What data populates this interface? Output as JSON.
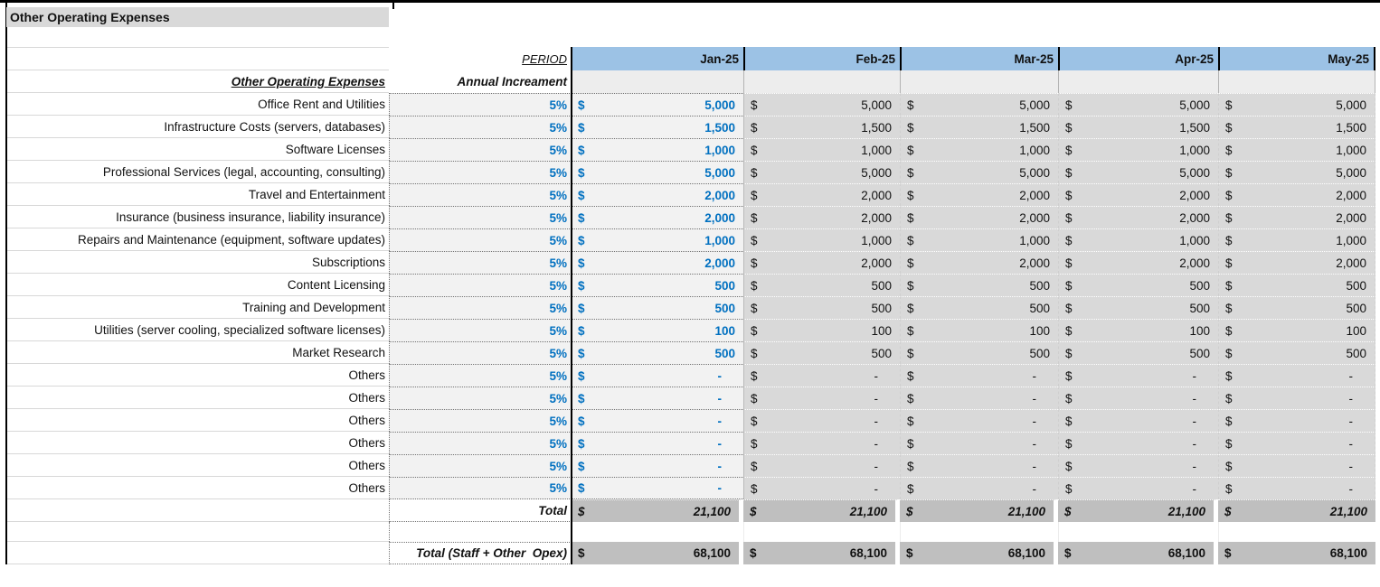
{
  "title": "Other Operating Expenses",
  "table": {
    "period_label": "PERIOD",
    "section_label": "Other Operating Expenses",
    "increment_label": "Annual Increament",
    "currency": "$",
    "months": [
      "Jan-25",
      "Feb-25",
      "Mar-25",
      "Apr-25",
      "May-25"
    ],
    "rows": [
      {
        "label": "Office Rent and Utilities",
        "increment": "5%",
        "values": [
          "5,000",
          "5,000",
          "5,000",
          "5,000",
          "5,000"
        ]
      },
      {
        "label": "Infrastructure Costs (servers, databases)",
        "increment": "5%",
        "values": [
          "1,500",
          "1,500",
          "1,500",
          "1,500",
          "1,500"
        ]
      },
      {
        "label": "Software Licenses",
        "increment": "5%",
        "values": [
          "1,000",
          "1,000",
          "1,000",
          "1,000",
          "1,000"
        ]
      },
      {
        "label": "Professional Services (legal, accounting, consulting)",
        "increment": "5%",
        "values": [
          "5,000",
          "5,000",
          "5,000",
          "5,000",
          "5,000"
        ]
      },
      {
        "label": "Travel and Entertainment",
        "increment": "5%",
        "values": [
          "2,000",
          "2,000",
          "2,000",
          "2,000",
          "2,000"
        ]
      },
      {
        "label": "Insurance (business insurance, liability insurance)",
        "increment": "5%",
        "values": [
          "2,000",
          "2,000",
          "2,000",
          "2,000",
          "2,000"
        ]
      },
      {
        "label": "Repairs and Maintenance (equipment, software updates)",
        "increment": "5%",
        "values": [
          "1,000",
          "1,000",
          "1,000",
          "1,000",
          "1,000"
        ]
      },
      {
        "label": "Subscriptions",
        "increment": "5%",
        "values": [
          "2,000",
          "2,000",
          "2,000",
          "2,000",
          "2,000"
        ]
      },
      {
        "label": "Content Licensing",
        "increment": "5%",
        "values": [
          "500",
          "500",
          "500",
          "500",
          "500"
        ]
      },
      {
        "label": "Training and Development",
        "increment": "5%",
        "values": [
          "500",
          "500",
          "500",
          "500",
          "500"
        ]
      },
      {
        "label": "Utilities (server cooling, specialized software licenses)",
        "increment": "5%",
        "values": [
          "100",
          "100",
          "100",
          "100",
          "100"
        ]
      },
      {
        "label": "Market Research",
        "increment": "5%",
        "values": [
          "500",
          "500",
          "500",
          "500",
          "500"
        ]
      },
      {
        "label": "Others",
        "increment": "5%",
        "values": [
          "-",
          "-",
          "-",
          "-",
          "-"
        ]
      },
      {
        "label": "Others",
        "increment": "5%",
        "values": [
          "-",
          "-",
          "-",
          "-",
          "-"
        ]
      },
      {
        "label": "Others",
        "increment": "5%",
        "values": [
          "-",
          "-",
          "-",
          "-",
          "-"
        ]
      },
      {
        "label": "Others",
        "increment": "5%",
        "values": [
          "-",
          "-",
          "-",
          "-",
          "-"
        ]
      },
      {
        "label": "Others",
        "increment": "5%",
        "values": [
          "-",
          "-",
          "-",
          "-",
          "-"
        ]
      },
      {
        "label": "Others",
        "increment": "5%",
        "values": [
          "-",
          "-",
          "-",
          "-",
          "-"
        ]
      }
    ],
    "total_row": {
      "label": "Total",
      "values": [
        "21,100",
        "21,100",
        "21,100",
        "21,100",
        "21,100"
      ]
    },
    "grand_total_row": {
      "label": "Total (Staff + Other  Opex)",
      "values": [
        "68,100",
        "68,100",
        "68,100",
        "68,100",
        "68,100"
      ]
    }
  },
  "colors": {
    "month_header": "#9CC2E5",
    "accent_text": "#0070C0",
    "row_shade_light": "#F2F2F2",
    "row_shade_mid": "#D9D9D9",
    "total_shade": "#BFBFBF",
    "title_shade": "#D9D9D9"
  }
}
